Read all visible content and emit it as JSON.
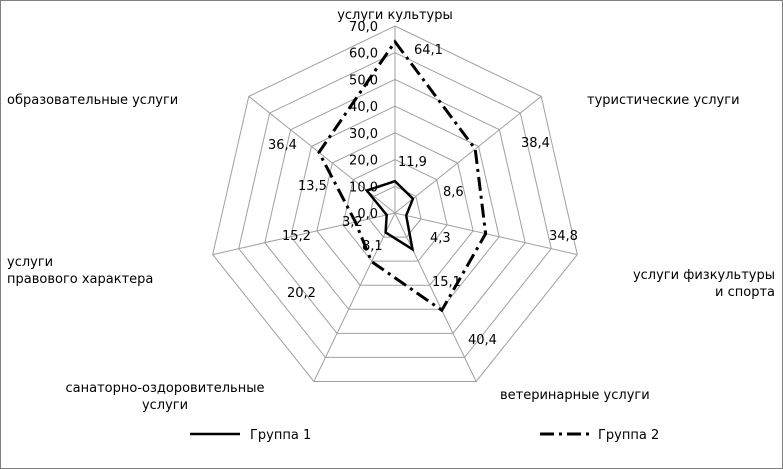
{
  "chart_data": {
    "type": "radar",
    "categories": [
      "услуги культуры",
      "туристические услуги",
      "услуги физкультуры и спорта",
      "ветеринарные услуги",
      "санаторно-оздоровительные услуги",
      "услуги правового характера",
      "образовательные услуги"
    ],
    "category_lines": [
      [
        "услуги культуры"
      ],
      [
        "туристические услуги"
      ],
      [
        "услуги физкультуры",
        "и спорта"
      ],
      [
        "ветеринарные услуги"
      ],
      [
        "санаторно-оздоровительные",
        "услуги"
      ],
      [
        "услуги",
        "правового характера"
      ],
      [
        "образовательные услуги"
      ]
    ],
    "series": [
      {
        "name": "Группа 1",
        "values": [
          11.9,
          8.6,
          4.3,
          15.1,
          8.1,
          3.2,
          13.5
        ],
        "labels": [
          "11,9",
          "8,6",
          "4,3",
          "15,1",
          "8,1",
          "3,2",
          "13,5"
        ],
        "style": "solid",
        "color": "#000000"
      },
      {
        "name": "Группа 2",
        "values": [
          64.1,
          38.4,
          34.8,
          40.4,
          20.2,
          15.2,
          36.4
        ],
        "labels": [
          "64,1",
          "38,4",
          "34,8",
          "40,4",
          "20,2",
          "15,2",
          "36,4"
        ],
        "style": "dash-dot",
        "color": "#000000"
      }
    ],
    "rlim": [
      0,
      70
    ],
    "ticks": [
      0,
      10,
      20,
      30,
      40,
      50,
      60,
      70
    ],
    "tick_labels": [
      "0,0",
      "10,0",
      "20,0",
      "30,0",
      "40,0",
      "50,0",
      "60,0",
      "70,0"
    ],
    "grid": true,
    "grid_color": "#a0a0a0",
    "legend": "bottom"
  }
}
